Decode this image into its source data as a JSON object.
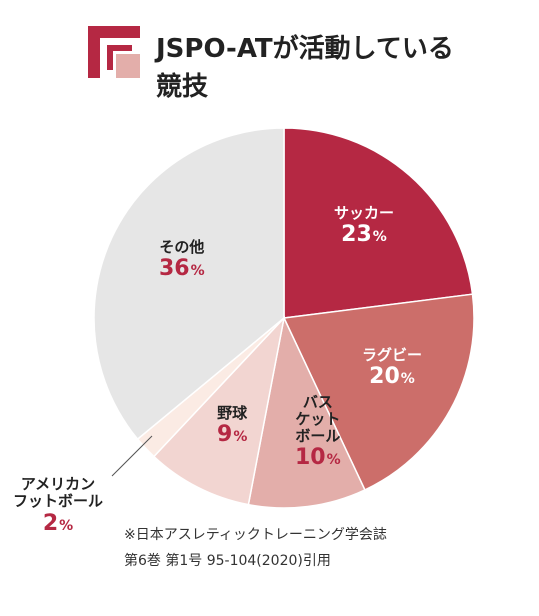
{
  "title": {
    "line1": "JSPO-ATが活動している",
    "line2": "競技"
  },
  "chart_data": {
    "type": "pie",
    "title": "JSPO-ATが活動している競技",
    "slices": [
      {
        "label": "サッカー",
        "label_lines": [
          "サッカー"
        ],
        "value": 23,
        "color": "#b52843"
      },
      {
        "label": "ラグビー",
        "label_lines": [
          "ラグビー"
        ],
        "value": 20,
        "color": "#cc6e6a"
      },
      {
        "label": "バスケットボール",
        "label_lines": [
          "バス",
          "ケット",
          "ボール"
        ],
        "value": 10,
        "color": "#e3aeaa"
      },
      {
        "label": "野球",
        "label_lines": [
          "野球"
        ],
        "value": 9,
        "color": "#f2d5d1"
      },
      {
        "label": "アメリカンフットボール",
        "label_lines": [
          "アメリカン",
          "フットボール"
        ],
        "value": 2,
        "color": "#fbebe4"
      },
      {
        "label": "その他",
        "label_lines": [
          "その他"
        ],
        "value": 36,
        "color": "#e6e6e6"
      }
    ],
    "unit": "%",
    "start_angle_deg": 0,
    "direction": "clockwise"
  },
  "source_note": {
    "line1": "※日本アスレティックトレーニング学会誌",
    "line2": "第6巻 第1号 95-104(2020)引用"
  },
  "colors": {
    "accent": "#b52843",
    "logo_light": "#e3aeaa"
  }
}
